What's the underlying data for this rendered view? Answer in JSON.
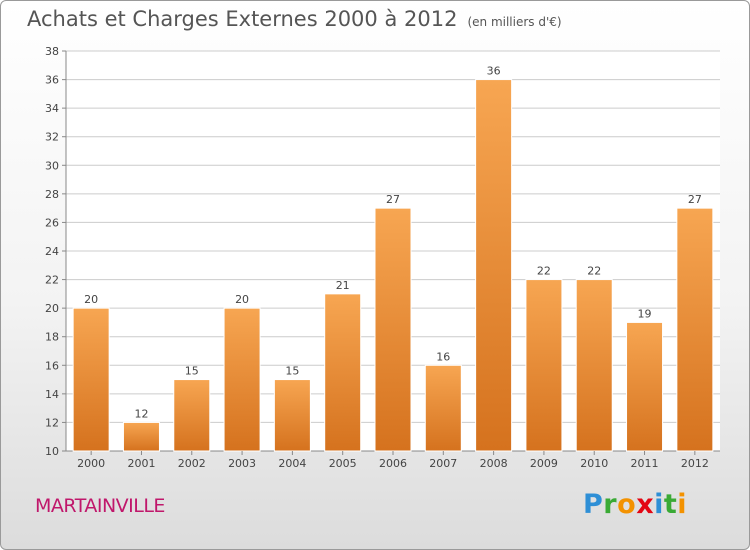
{
  "title": "Achats et Charges Externes 2000 à 2012",
  "subtitle": "(en milliers d'€)",
  "commune": "MARTAINVILLE",
  "logo": {
    "letters": [
      "P",
      "r",
      "o",
      "x",
      "i",
      "t",
      "i"
    ],
    "colors": [
      "#2e8fd6",
      "#3aaa35",
      "#f39200",
      "#e30613",
      "#2e8fd6",
      "#3aaa35",
      "#f39200"
    ]
  },
  "colors": {
    "bar_top": "#f7a652",
    "bar_bottom": "#d5721e",
    "grid": "#cccccc",
    "axis": "#888888",
    "text": "#444444",
    "commune": "#c0176b"
  },
  "chart_data": {
    "type": "bar",
    "title": "Achats et Charges Externes 2000 à 2012",
    "subtitle": "(en milliers d'€)",
    "categories": [
      "2000",
      "2001",
      "2002",
      "2003",
      "2004",
      "2005",
      "2006",
      "2007",
      "2008",
      "2009",
      "2010",
      "2011",
      "2012"
    ],
    "values": [
      20,
      12,
      15,
      20,
      15,
      21,
      27,
      16,
      36,
      22,
      22,
      19,
      27
    ],
    "ylim": [
      10,
      38
    ],
    "yticks": [
      10,
      12,
      14,
      16,
      18,
      20,
      22,
      24,
      26,
      28,
      30,
      32,
      34,
      36,
      38
    ],
    "grid": true,
    "legend": "none"
  }
}
